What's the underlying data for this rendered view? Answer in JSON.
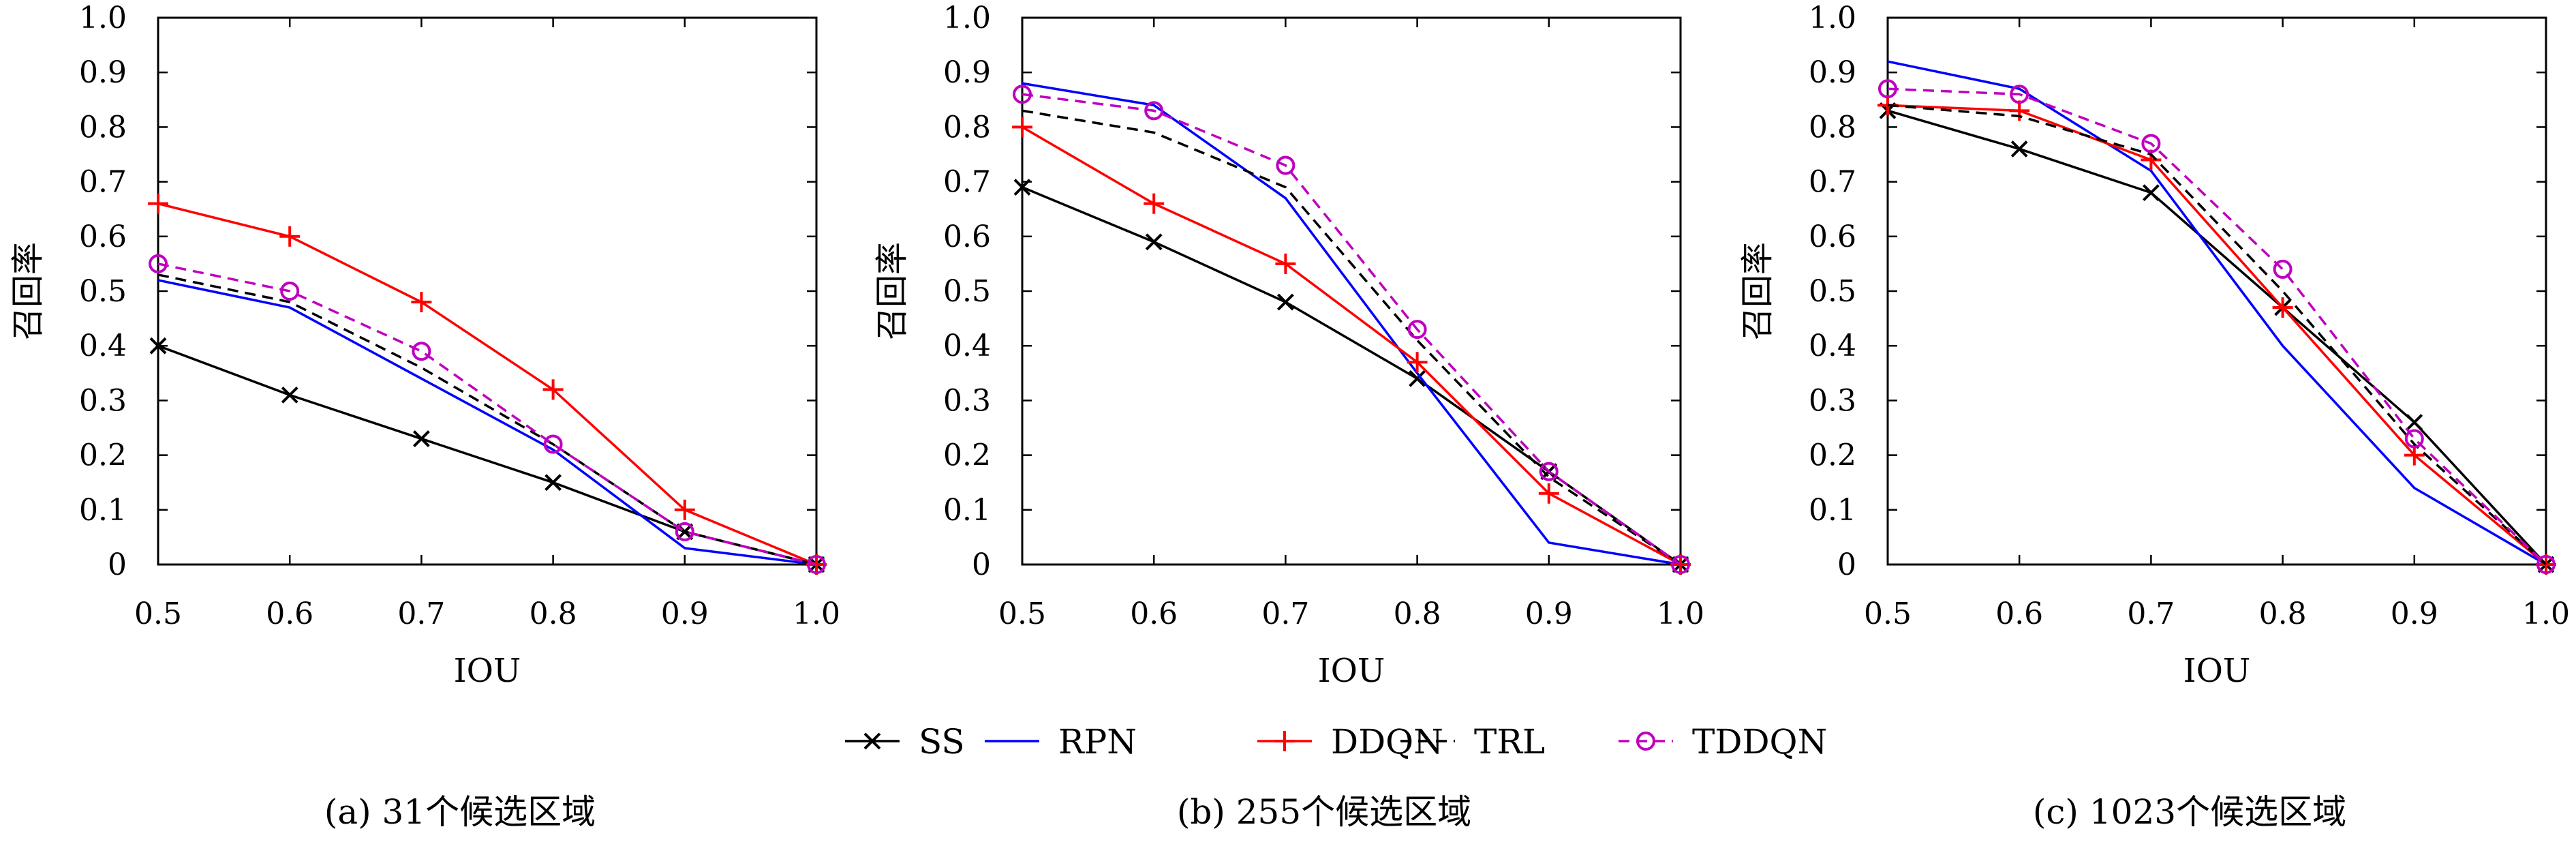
{
  "legend": {
    "entries": [
      {
        "name": "SS",
        "color": "#000000",
        "dash": "",
        "marker": "x"
      },
      {
        "name": "RPN",
        "color": "#0000ff",
        "dash": "",
        "marker": ""
      },
      {
        "name": "DDQN",
        "color": "#ff0000",
        "dash": "",
        "marker": "plus"
      },
      {
        "name": "TRL",
        "color": "#000000",
        "dash": "dash",
        "marker": ""
      },
      {
        "name": "TDDQN",
        "color": "#bf00bf",
        "dash": "dash",
        "marker": "circle"
      }
    ]
  },
  "chart_data": [
    {
      "type": "line",
      "caption": "(a) 31个候选区域",
      "xlabel": "IOU",
      "ylabel": "召回率",
      "xlim": [
        0.5,
        1.0
      ],
      "ylim": [
        0,
        1.0
      ],
      "x_ticks": [
        "0.5",
        "0.6",
        "0.7",
        "0.8",
        "0.9",
        "1.0"
      ],
      "y_ticks": [
        "0",
        "0.1",
        "0.2",
        "0.3",
        "0.4",
        "0.5",
        "0.6",
        "0.7",
        "0.8",
        "0.9",
        "1.0"
      ],
      "x": [
        0.5,
        0.6,
        0.7,
        0.8,
        0.9,
        1.0
      ],
      "series": [
        {
          "name": "SS",
          "values": [
            0.4,
            0.31,
            0.23,
            0.15,
            0.06,
            0.0
          ]
        },
        {
          "name": "RPN",
          "values": [
            0.52,
            0.47,
            0.34,
            0.21,
            0.03,
            0.0
          ]
        },
        {
          "name": "DDQN",
          "values": [
            0.66,
            0.6,
            0.48,
            0.32,
            0.1,
            0.0
          ]
        },
        {
          "name": "TRL",
          "values": [
            0.53,
            0.48,
            0.36,
            0.22,
            0.06,
            0.0
          ]
        },
        {
          "name": "TDDQN",
          "values": [
            0.55,
            0.5,
            0.39,
            0.22,
            0.06,
            0.0
          ]
        }
      ]
    },
    {
      "type": "line",
      "caption": "(b) 255个候选区域",
      "xlabel": "IOU",
      "ylabel": "召回率",
      "xlim": [
        0.5,
        1.0
      ],
      "ylim": [
        0,
        1.0
      ],
      "x_ticks": [
        "0.5",
        "0.6",
        "0.7",
        "0.8",
        "0.9",
        "1.0"
      ],
      "y_ticks": [
        "0",
        "0.1",
        "0.2",
        "0.3",
        "0.4",
        "0.5",
        "0.6",
        "0.7",
        "0.8",
        "0.9",
        "1.0"
      ],
      "x": [
        0.5,
        0.6,
        0.7,
        0.8,
        0.9,
        1.0
      ],
      "series": [
        {
          "name": "SS",
          "values": [
            0.69,
            0.59,
            0.48,
            0.34,
            0.17,
            0.0
          ]
        },
        {
          "name": "RPN",
          "values": [
            0.88,
            0.84,
            0.67,
            0.35,
            0.04,
            0.0
          ]
        },
        {
          "name": "DDQN",
          "values": [
            0.8,
            0.66,
            0.55,
            0.37,
            0.13,
            0.0
          ]
        },
        {
          "name": "TRL",
          "values": [
            0.83,
            0.79,
            0.69,
            0.41,
            0.16,
            0.0
          ]
        },
        {
          "name": "TDDQN",
          "values": [
            0.86,
            0.83,
            0.73,
            0.43,
            0.17,
            0.0
          ]
        }
      ]
    },
    {
      "type": "line",
      "caption": "(c) 1023个候选区域",
      "xlabel": "IOU",
      "ylabel": "召回率",
      "xlim": [
        0.5,
        1.0
      ],
      "ylim": [
        0,
        1.0
      ],
      "x_ticks": [
        "0.5",
        "0.6",
        "0.7",
        "0.8",
        "0.9",
        "1.0"
      ],
      "y_ticks": [
        "0",
        "0.1",
        "0.2",
        "0.3",
        "0.4",
        "0.5",
        "0.6",
        "0.7",
        "0.8",
        "0.9",
        "1.0"
      ],
      "x": [
        0.5,
        0.6,
        0.7,
        0.8,
        0.9,
        1.0
      ],
      "series": [
        {
          "name": "SS",
          "values": [
            0.83,
            0.76,
            0.68,
            0.47,
            0.26,
            0.0
          ]
        },
        {
          "name": "RPN",
          "values": [
            0.92,
            0.87,
            0.72,
            0.4,
            0.14,
            0.0
          ]
        },
        {
          "name": "DDQN",
          "values": [
            0.84,
            0.83,
            0.74,
            0.47,
            0.2,
            0.0
          ]
        },
        {
          "name": "TRL",
          "values": [
            0.84,
            0.82,
            0.75,
            0.5,
            0.22,
            0.0
          ]
        },
        {
          "name": "TDDQN",
          "values": [
            0.87,
            0.86,
            0.77,
            0.54,
            0.23,
            0.0
          ]
        }
      ]
    }
  ]
}
